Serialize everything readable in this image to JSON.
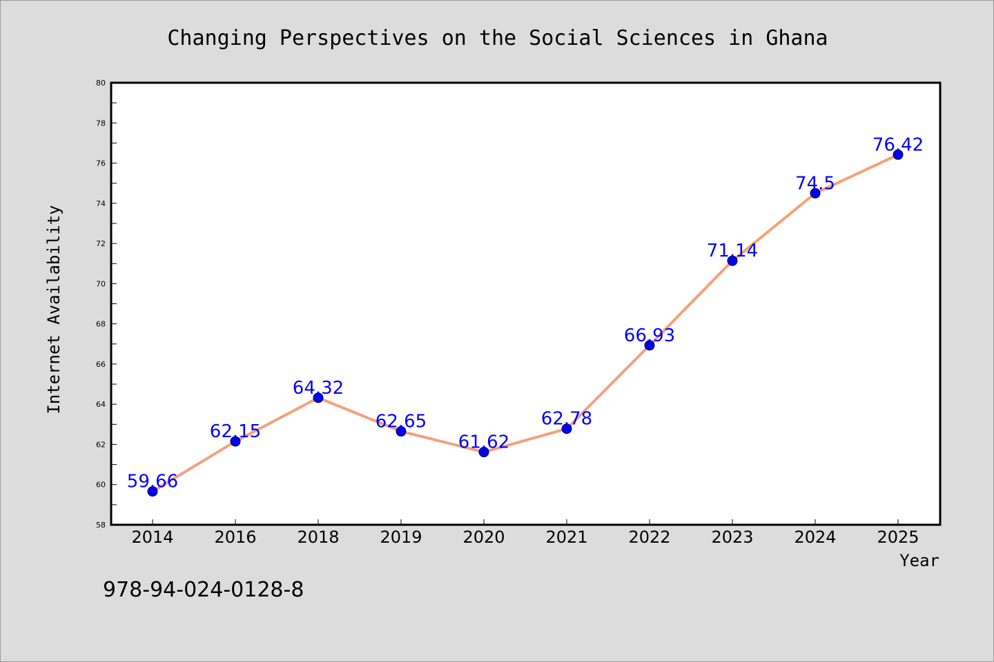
{
  "chart_data": {
    "type": "line",
    "title": "Changing Perspectives on the Social Sciences in Ghana",
    "xlabel": "Year",
    "ylabel": "Internet Availability",
    "categories": [
      "2014",
      "2016",
      "2018",
      "2019",
      "2020",
      "2021",
      "2022",
      "2023",
      "2024",
      "2025"
    ],
    "values": [
      59.66,
      62.15,
      64.32,
      62.65,
      61.62,
      62.78,
      66.93,
      71.14,
      74.5,
      76.42
    ],
    "data_labels": [
      "59.66",
      "62.15",
      "64.32",
      "62.65",
      "61.62",
      "62.78",
      "66.93",
      "71.14",
      "74.5",
      "76.42"
    ],
    "ylim": [
      58,
      80
    ],
    "yticks": [
      58,
      60,
      62,
      64,
      66,
      68,
      70,
      72,
      74,
      76,
      78,
      80
    ],
    "grid": false,
    "line_color": "#f4a07a",
    "marker_color": "#0000ee",
    "label_color": "#0000ff"
  },
  "footer": {
    "isbn": "978-94-024-0128-8"
  }
}
